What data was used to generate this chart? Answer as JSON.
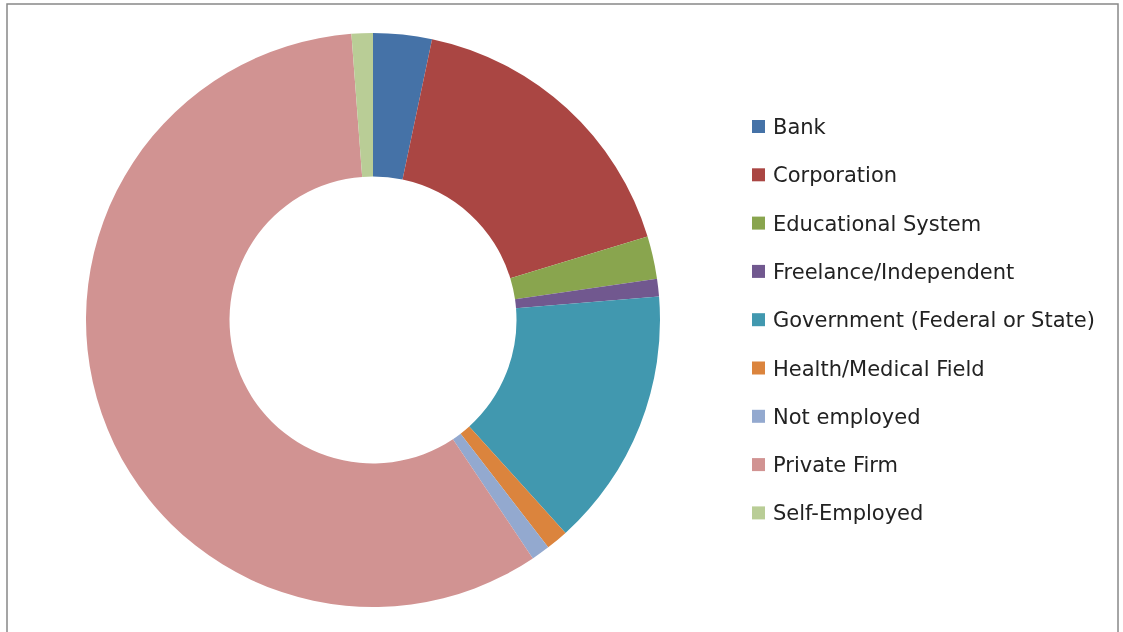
{
  "chart_data": {
    "type": "donut",
    "categories": [
      "Bank",
      "Corporation",
      "Educational System",
      "Freelance/Independent",
      "Government (Federal or State)",
      "Health/Medical Field",
      "Not employed",
      "Private Firm",
      "Self-Employed"
    ],
    "values": [
      3.3,
      17,
      2.4,
      1,
      14.6,
      1.25,
      1.05,
      58.2,
      1.2
    ],
    "colors": [
      "#4572a7",
      "#aa4643",
      "#89a54e",
      "#71588f",
      "#4198af",
      "#db843d",
      "#93a9cf",
      "#d19392",
      "#b9cd96"
    ],
    "legend": "right"
  }
}
